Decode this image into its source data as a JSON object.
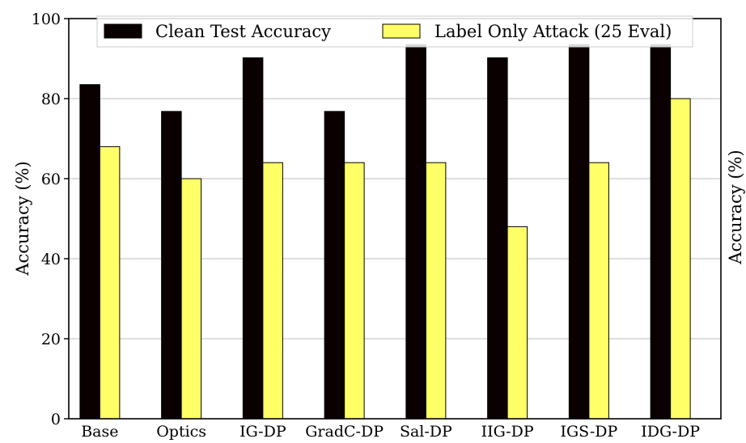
{
  "chart_data": {
    "type": "bar",
    "categories": [
      "Base",
      "Optics",
      "IG-DP",
      "GradC-DP",
      "Sal-DP",
      "IIG-DP",
      "IGS-DP",
      "IDG-DP"
    ],
    "series": [
      {
        "name": "Clean Test Accuracy",
        "values": [
          83.5,
          76.8,
          90.2,
          76.8,
          93.5,
          90.2,
          93.5,
          93.5
        ],
        "color": "#0a0000"
      },
      {
        "name": "Label Only Attack (25 Eval)",
        "values": [
          68,
          60,
          64,
          64,
          64,
          48,
          64,
          80
        ],
        "color": "#ffff66"
      }
    ],
    "ylabel": "Accuracy (%)",
    "ylabel_right": "Accuracy (%)",
    "ylim": [
      0,
      100
    ],
    "yticks": [
      "0",
      "20",
      "40",
      "60",
      "80",
      "100"
    ],
    "grid": "horizontal",
    "legend_position": "top"
  }
}
